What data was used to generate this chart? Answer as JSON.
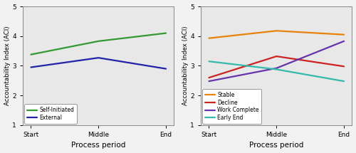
{
  "left": {
    "x": [
      0,
      1,
      2
    ],
    "xtick_labels": [
      "Start",
      "Middle",
      "End"
    ],
    "series_order": [
      "Self-Initiated",
      "External"
    ],
    "series": {
      "Self-Initiated": {
        "y": [
          3.38,
          3.83,
          4.1
        ],
        "color": "#339933",
        "linewidth": 1.6
      },
      "External": {
        "y": [
          2.95,
          3.27,
          2.9
        ],
        "color": "#2222aa",
        "linewidth": 1.6
      }
    },
    "ylabel": "Accountability Index (ACI)",
    "xlabel": "Process period",
    "ylim": [
      1,
      5
    ],
    "yticks": [
      1,
      2,
      3,
      4,
      5
    ],
    "legend_loc": "lower left"
  },
  "right": {
    "x": [
      0,
      1,
      2
    ],
    "xtick_labels": [
      "Start",
      "Middle",
      "End"
    ],
    "series_order": [
      "Stable",
      "Decline",
      "Work Complete",
      "Early End"
    ],
    "series": {
      "Stable": {
        "y": [
          3.93,
          4.18,
          4.05
        ],
        "color": "#e8820a",
        "linewidth": 1.6
      },
      "Decline": {
        "y": [
          2.6,
          3.32,
          2.98
        ],
        "color": "#cc2222",
        "linewidth": 1.6
      },
      "Work Complete": {
        "y": [
          2.48,
          2.92,
          3.83
        ],
        "color": "#6633aa",
        "linewidth": 1.6
      },
      "Early End": {
        "y": [
          3.15,
          2.88,
          2.48
        ],
        "color": "#33bbaa",
        "linewidth": 1.6
      }
    },
    "ylabel": "Accountability Index (ACI)",
    "xlabel": "Process period",
    "ylim": [
      1,
      5
    ],
    "yticks": [
      1,
      2,
      3,
      4,
      5
    ],
    "legend_loc": "lower left"
  },
  "plot_bg_color": "#e8e8e8",
  "fig_bg_color": "#f2f2f2",
  "fig_width": 5.0,
  "fig_height": 2.15
}
